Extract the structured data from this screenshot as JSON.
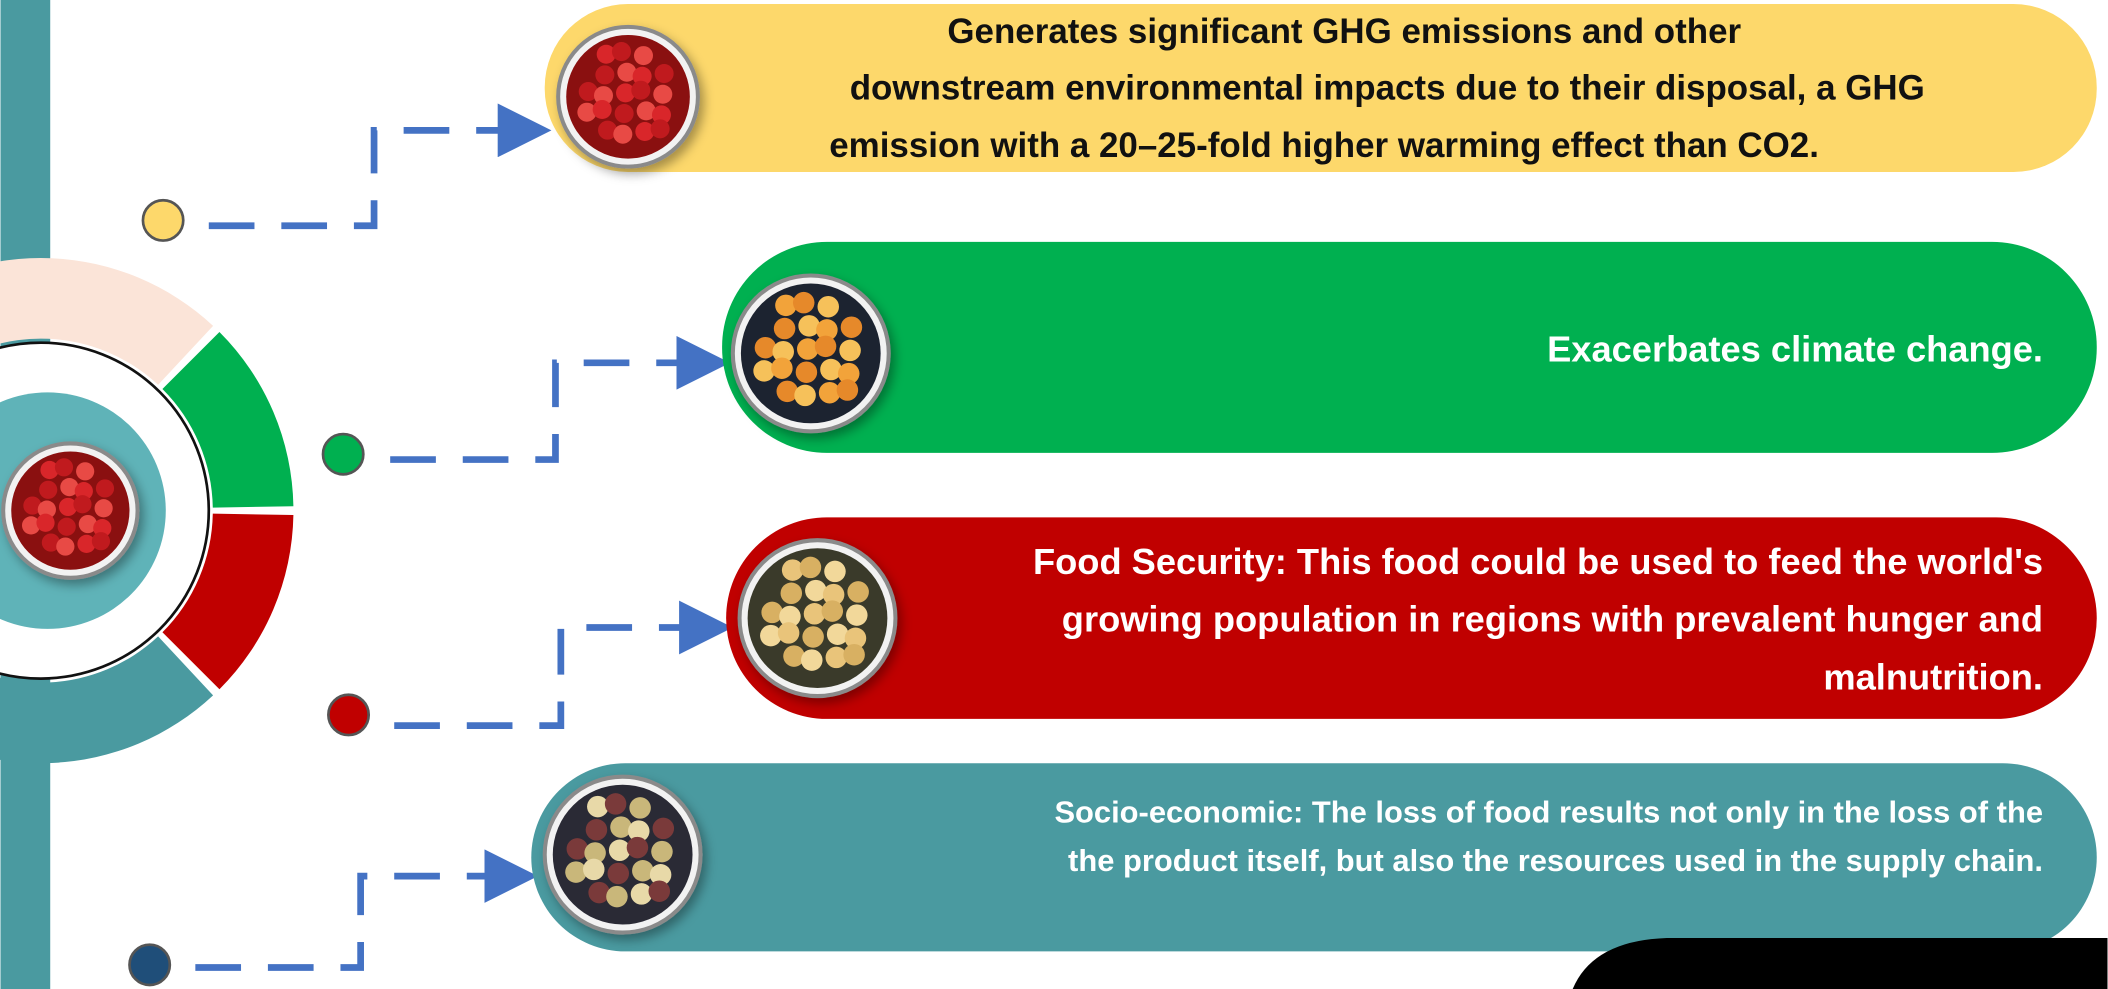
{
  "items": [
    {
      "lines": [
        "Generates significant GHG emissions and other",
        "downstream environmental impacts due to their disposal, a GHG",
        "emission with a 20–25-fold higher warming effect than CO2."
      ]
    },
    {
      "lines": [
        "Exacerbates climate change."
      ]
    },
    {
      "lines": [
        "Food Security: This food could be used to feed the world's",
        "growing population in regions with prevalent hunger and",
        "malnutrition."
      ]
    },
    {
      "lines": [
        "Socio-economic: The loss of food results not only in the loss of the",
        "the product itself, but also the resources used in the supply chain."
      ]
    }
  ]
}
